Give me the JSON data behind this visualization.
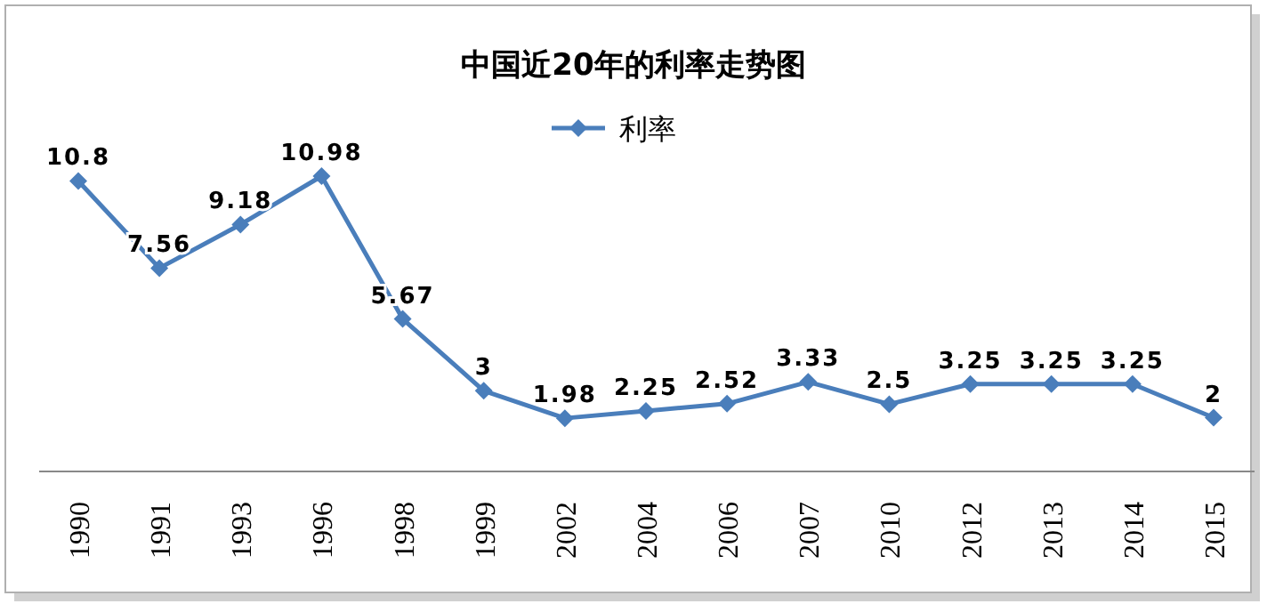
{
  "chart_data": {
    "type": "line",
    "title": "中国近20年的利率走势图",
    "categories": [
      "1990",
      "1991",
      "1993",
      "1996",
      "1998",
      "1999",
      "2002",
      "2004",
      "2006",
      "2007",
      "2010",
      "2012",
      "2013",
      "2014",
      "2015"
    ],
    "series": [
      {
        "name": "利率",
        "color": "#4a7ebb",
        "values": [
          10.8,
          7.56,
          9.18,
          10.98,
          5.67,
          3,
          1.98,
          2.25,
          2.52,
          3.33,
          2.5,
          3.25,
          3.25,
          3.25,
          2
        ]
      }
    ],
    "data_labels": true,
    "legend": "top",
    "marker": "diamond",
    "line_style": "solid"
  }
}
